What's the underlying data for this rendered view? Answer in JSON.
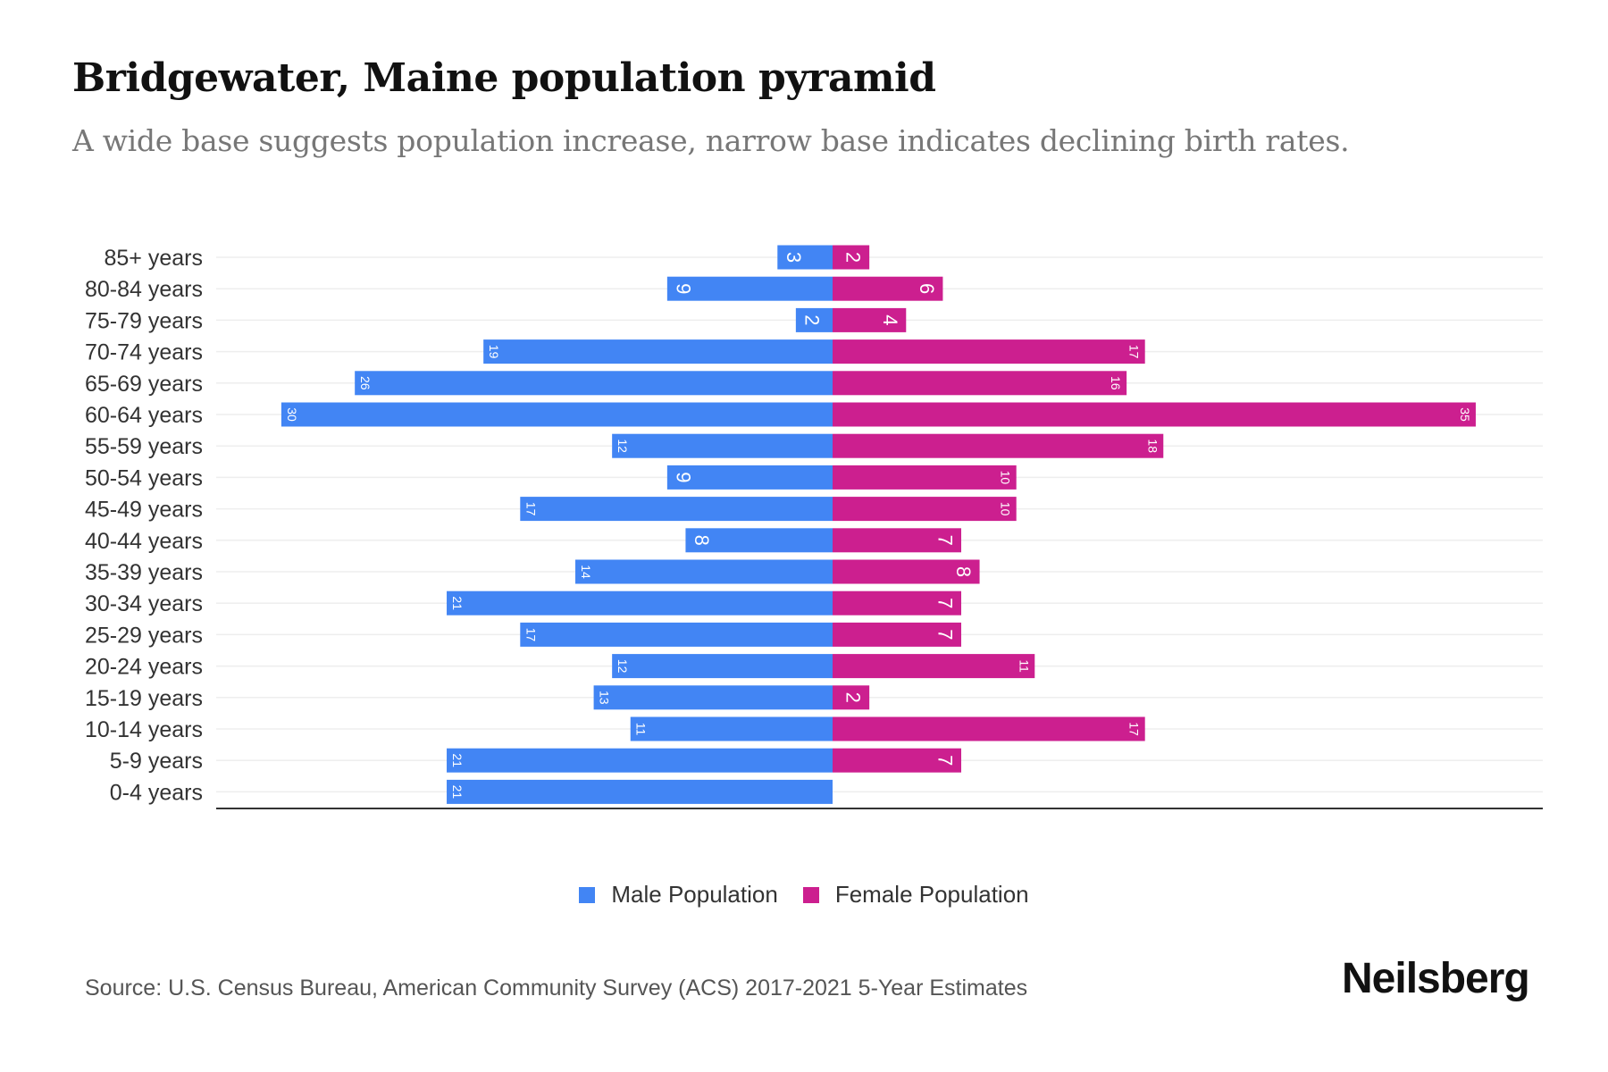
{
  "title": "Bridgewater, Maine population pyramid",
  "subtitle": "A wide base suggests population increase, narrow base indicates declining birth rates.",
  "source": "Source: U.S. Census Bureau, American Community Survey (ACS) 2017-2021 5-Year Estimates",
  "logo": "Neilsberg",
  "chart_data": {
    "type": "bar",
    "orientation": "horizontal-pyramid",
    "categories": [
      "85+ years",
      "80-84 years",
      "75-79 years",
      "70-74 years",
      "65-69 years",
      "60-64 years",
      "55-59 years",
      "50-54 years",
      "45-49 years",
      "40-44 years",
      "35-39 years",
      "30-34 years",
      "25-29 years",
      "20-24 years",
      "15-19 years",
      "10-14 years",
      "5-9 years",
      "0-4 years"
    ],
    "series": [
      {
        "name": "Male Population",
        "color": "#4285f4",
        "values": [
          3,
          9,
          2,
          19,
          26,
          30,
          12,
          9,
          17,
          8,
          14,
          21,
          17,
          12,
          13,
          11,
          21,
          21
        ]
      },
      {
        "name": "Female Population",
        "color": "#cc1f8f",
        "values": [
          2,
          6,
          4,
          17,
          16,
          35,
          18,
          10,
          10,
          7,
          8,
          7,
          7,
          11,
          2,
          17,
          7,
          0
        ]
      }
    ],
    "legend": "bottom-center",
    "grid": true
  }
}
